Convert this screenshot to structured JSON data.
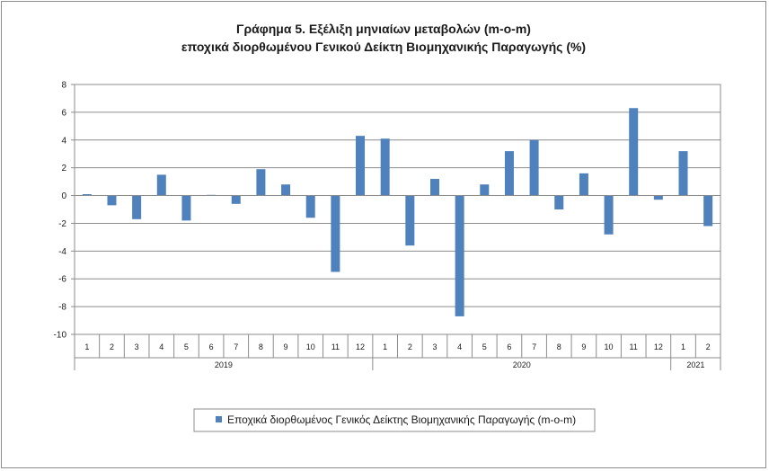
{
  "chart_data": {
    "type": "bar",
    "title": "Γράφημα 5. Εξέλιξη μηνιαίων μεταβολών (m-o-m)",
    "subtitle": "εποχικά διορθωμένου Γενικού Δείκτη Βιομηχανικής Παραγωγής (%)",
    "xlabel": "",
    "ylabel": "",
    "ylim": [
      -10,
      8
    ],
    "yticks": [
      -10,
      -8,
      -6,
      -4,
      -2,
      0,
      2,
      4,
      6,
      8
    ],
    "grid": true,
    "legend_position": "bottom",
    "bar_color": "#4f81bd",
    "categories": [
      "1",
      "2",
      "3",
      "4",
      "5",
      "6",
      "7",
      "8",
      "9",
      "10",
      "11",
      "12",
      "1",
      "2",
      "3",
      "4",
      "5",
      "6",
      "7",
      "8",
      "9",
      "10",
      "11",
      "12",
      "1",
      "2"
    ],
    "groups": [
      {
        "label": "2019",
        "count": 12
      },
      {
        "label": "2020",
        "count": 12
      },
      {
        "label": "2021",
        "count": 2
      }
    ],
    "series": [
      {
        "name": "Εποχικά διορθωμένος Γενικός Δείκτης Βιομηχανικής Παραγωγής (m-o-m)",
        "values": [
          0.1,
          -0.7,
          -1.7,
          1.5,
          -1.8,
          0.05,
          -0.6,
          1.9,
          0.8,
          -1.6,
          -5.5,
          4.3,
          4.1,
          -3.6,
          1.2,
          -8.7,
          0.8,
          3.2,
          4.0,
          -1.0,
          1.6,
          -2.8,
          6.3,
          -0.3,
          3.2,
          -2.2
        ]
      }
    ]
  }
}
